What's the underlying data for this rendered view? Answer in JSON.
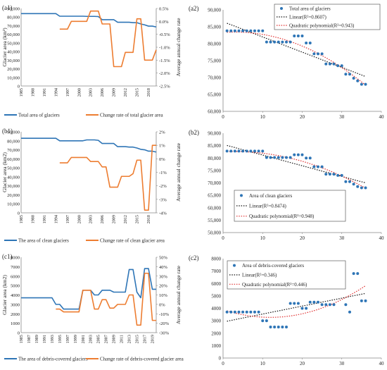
{
  "chart_data": [
    {
      "panel": "(a1)",
      "type": "line",
      "ylabel": "Glacier area (km²)",
      "y2label": "Average annual change rate",
      "yticks": [
        "0",
        "10,000",
        "20,000",
        "30,000",
        "40,000",
        "50,000",
        "60,000",
        "70,000",
        "80,000",
        "90,000"
      ],
      "ylim": [
        0,
        90000
      ],
      "y2ticks": [
        "-2.5%",
        "-2.0%",
        "-1.5%",
        "-1.0%",
        "-0.5%",
        "0.0%",
        "0.5%"
      ],
      "y2lim": [
        -2.5,
        0.5
      ],
      "xticks": [
        "1985",
        "1988",
        "1991",
        "1994",
        "1997",
        "2000",
        "2003",
        "2006",
        "2009",
        "2012",
        "2015",
        "2018"
      ],
      "xrange": [
        1985,
        2020
      ],
      "series": [
        {
          "name": "Total area of glaciers",
          "axis": "left",
          "color": "#2e75b6",
          "x": [
            1985,
            1986,
            1987,
            1988,
            1989,
            1990,
            1991,
            1992,
            1993,
            1994,
            1995,
            1996,
            1997,
            1998,
            1999,
            2000,
            2001,
            2002,
            2003,
            2004,
            2005,
            2006,
            2007,
            2008,
            2009,
            2010,
            2011,
            2012,
            2013,
            2014,
            2015,
            2016,
            2017,
            2018,
            2019,
            2020
          ],
          "values": [
            84000,
            84000,
            84000,
            84000,
            84000,
            84000,
            84000,
            84000,
            84000,
            84000,
            81000,
            81000,
            81000,
            81000,
            81000,
            81000,
            81000,
            80800,
            80800,
            80800,
            80600,
            77000,
            77000,
            77000,
            77000,
            74000,
            74000,
            74000,
            74000,
            73500,
            73500,
            72000,
            71000,
            69500,
            69500,
            68500
          ]
        },
        {
          "name": "Change rate of total glacier area",
          "axis": "right",
          "color": "#ed7d31",
          "x": [
            1995,
            1996,
            1997,
            1998,
            1999,
            2000,
            2001,
            2002,
            2003,
            2004,
            2005,
            2006,
            2007,
            2008,
            2009,
            2010,
            2011,
            2012,
            2013,
            2014,
            2015,
            2016,
            2017,
            2018,
            2019,
            2020
          ],
          "values": [
            -0.3,
            -0.3,
            -0.3,
            0.0,
            0.0,
            0.0,
            0.0,
            0.0,
            0.4,
            0.4,
            0.4,
            -0.1,
            -0.1,
            -0.1,
            -1.75,
            -1.75,
            -1.75,
            -1.2,
            -1.2,
            -1.2,
            0.1,
            0.1,
            -1.5,
            -1.5,
            -1.5,
            -1.1
          ]
        }
      ]
    },
    {
      "panel": "(a2)",
      "type": "scatter",
      "ylim": [
        60000,
        90000
      ],
      "yticks": [
        "60,000",
        "65,000",
        "70,000",
        "75,000",
        "80,000",
        "85,000",
        "90,000"
      ],
      "xlim": [
        0,
        40
      ],
      "xticks": [
        "0",
        "10",
        "20",
        "30",
        "40"
      ],
      "legend": [
        {
          "label": "Total area of glaciers",
          "style": "dot",
          "color": "#2e75b6"
        },
        {
          "label": "Linear(R²=0.8607)",
          "style": "dotted",
          "color": "#111111"
        },
        {
          "label": "Quadratic polynomial(R²=0.943)",
          "style": "dotted",
          "color": "#e03030"
        }
      ],
      "points": {
        "x": [
          1,
          2,
          3,
          4,
          5,
          6,
          7,
          8,
          9,
          10,
          11,
          12,
          13,
          14,
          15,
          16,
          17,
          18,
          19,
          20,
          21,
          22,
          23,
          24,
          25,
          26,
          27,
          28,
          29,
          30,
          31,
          32,
          33,
          34,
          35,
          36
        ],
        "y": [
          83800,
          83800,
          83800,
          83800,
          83800,
          83800,
          83800,
          83800,
          83800,
          83800,
          80500,
          80500,
          80500,
          80500,
          80500,
          80500,
          80500,
          82300,
          82300,
          82300,
          80200,
          80200,
          77000,
          77000,
          77000,
          74000,
          74000,
          74000,
          73500,
          73500,
          71000,
          71000,
          69800,
          69000,
          68000,
          68000
        ]
      },
      "linear": {
        "coef": [
          86500,
          -450
        ]
      },
      "quadratic": {
        "coef": [
          83300,
          90,
          -14.5
        ]
      }
    },
    {
      "panel": "(b1)",
      "type": "line",
      "ylabel": "Glacier area (km2)",
      "y2label": "Average annual change rate",
      "yticks": [
        "0",
        "10,000",
        "20,000",
        "30,000",
        "40,000",
        "50,000",
        "60,000",
        "70,000",
        "80,000",
        "90,000"
      ],
      "ylim": [
        0,
        90000
      ],
      "y2ticks": [
        "-4%",
        "-3%",
        "-2%",
        "-1%",
        "0%",
        "1%",
        "2%"
      ],
      "y2lim": [
        -4,
        2
      ],
      "xticks": [
        "1985",
        "1988",
        "1991",
        "1994",
        "1997",
        "2000",
        "2003",
        "2006",
        "2009",
        "2012",
        "2015",
        "2018"
      ],
      "xrange": [
        1985,
        2020
      ],
      "series": [
        {
          "name": "The area of clean glaciers",
          "axis": "left",
          "color": "#2e75b6",
          "x": [
            1985,
            1986,
            1987,
            1988,
            1989,
            1990,
            1991,
            1992,
            1993,
            1994,
            1995,
            1996,
            1997,
            1998,
            1999,
            2000,
            2001,
            2002,
            2003,
            2004,
            2005,
            2006,
            2007,
            2008,
            2009,
            2010,
            2011,
            2012,
            2013,
            2014,
            2015,
            2016,
            2017,
            2018,
            2019,
            2020
          ],
          "values": [
            82800,
            82800,
            82800,
            82800,
            82800,
            82800,
            82800,
            82800,
            82800,
            82800,
            80000,
            80000,
            80000,
            80000,
            80000,
            80000,
            80000,
            81000,
            81000,
            81000,
            80500,
            77000,
            77000,
            77000,
            77000,
            73500,
            73500,
            73500,
            73000,
            73000,
            72000,
            70500,
            70000,
            68500,
            68500,
            67500
          ]
        },
        {
          "name": "Change rate of clean glacier area",
          "axis": "right",
          "color": "#ed7d31",
          "x": [
            1995,
            1996,
            1997,
            1998,
            1999,
            2000,
            2001,
            2002,
            2003,
            2004,
            2005,
            2006,
            2007,
            2008,
            2009,
            2010,
            2011,
            2012,
            2013,
            2014,
            2015,
            2016,
            2017,
            2018,
            2019,
            2020
          ],
          "values": [
            -0.3,
            -0.3,
            -0.3,
            0.1,
            0.1,
            0.1,
            0.1,
            0.1,
            -0.2,
            -0.2,
            -0.2,
            -0.6,
            -0.6,
            -2.1,
            -2.1,
            -2.1,
            -1.3,
            -1.3,
            -1.3,
            -1.1,
            -0.1,
            -0.1,
            -3.8,
            -3.8,
            1.0,
            1.0
          ]
        }
      ]
    },
    {
      "panel": "(b2)",
      "type": "scatter",
      "ylim": [
        50000,
        90000
      ],
      "yticks": [
        "50,000",
        "55,000",
        "60,000",
        "65,000",
        "70,000",
        "75,000",
        "80,000",
        "85,000",
        "90,000"
      ],
      "xlim": [
        0,
        40
      ],
      "xticks": [
        "0",
        "10",
        "20",
        "30",
        "40"
      ],
      "legend": [
        {
          "label": "Area of clean glaciers",
          "style": "dot",
          "color": "#2e75b6"
        },
        {
          "label": "Linear(R²=0.8474)",
          "style": "dotted",
          "color": "#111111"
        },
        {
          "label": "Quadratic polynomial(R²=0.948)",
          "style": "dotted",
          "color": "#e03030"
        }
      ],
      "points": {
        "x": [
          1,
          2,
          3,
          4,
          5,
          6,
          7,
          8,
          9,
          10,
          11,
          12,
          13,
          14,
          15,
          16,
          17,
          18,
          19,
          20,
          21,
          22,
          23,
          24,
          25,
          26,
          27,
          28,
          29,
          30,
          31,
          32,
          33,
          34,
          35,
          36
        ],
        "y": [
          82800,
          82800,
          82800,
          82800,
          82800,
          82800,
          82800,
          82800,
          82800,
          82800,
          80200,
          80200,
          80200,
          80200,
          80200,
          80200,
          80200,
          81300,
          81300,
          81300,
          80000,
          80000,
          76500,
          76500,
          76500,
          73500,
          73500,
          73500,
          73000,
          73000,
          70500,
          70500,
          69500,
          68500,
          68000,
          68000
        ]
      },
      "linear": {
        "coef": [
          85500,
          -430
        ]
      },
      "quadratic": {
        "coef": [
          82500,
          80,
          -13.5
        ]
      }
    },
    {
      "panel": "(c1)",
      "type": "line",
      "ylabel": "Glacier area (km2)",
      "y2label": "Average annual change rate",
      "yticks": [
        "0",
        "1000",
        "2000",
        "3000",
        "4000",
        "5000",
        "6000",
        "7000",
        "8000"
      ],
      "ylim": [
        0,
        8000
      ],
      "y2ticks": [
        "-30%",
        "-20%",
        "-10%",
        "0%",
        "10%",
        "20%",
        "30%",
        "40%",
        "50%"
      ],
      "y2lim": [
        -30,
        50
      ],
      "xticks": [
        "1985",
        "1987",
        "1989",
        "1991",
        "1993",
        "1995",
        "1997",
        "1999",
        "2001",
        "2003",
        "2005",
        "2007",
        "2009",
        "2011",
        "2013",
        "2015",
        "2017",
        "2019"
      ],
      "xrange": [
        1985,
        2020
      ],
      "series": [
        {
          "name": "The area of debris-covered glaciers",
          "axis": "left",
          "color": "#2e75b6",
          "x": [
            1985,
            1986,
            1987,
            1988,
            1989,
            1990,
            1991,
            1992,
            1993,
            1994,
            1995,
            1996,
            1997,
            1998,
            1999,
            2000,
            2001,
            2002,
            2003,
            2004,
            2005,
            2006,
            2007,
            2008,
            2009,
            2010,
            2011,
            2012,
            2013,
            2014,
            2015,
            2016,
            2017,
            2018,
            2019,
            2020
          ],
          "values": [
            3700,
            3700,
            3700,
            3700,
            3700,
            3700,
            3700,
            3700,
            3700,
            3000,
            3000,
            2500,
            2500,
            2500,
            2500,
            2500,
            4500,
            4500,
            4500,
            4000,
            4000,
            4500,
            4500,
            4500,
            4300,
            4300,
            4300,
            4300,
            6700,
            6700,
            4300,
            3700,
            6800,
            6800,
            4600,
            4600
          ]
        },
        {
          "name": "Change rate of debris-covered glacier area",
          "axis": "right",
          "color": "#ed7d31",
          "x": [
            1994,
            1995,
            1996,
            1997,
            1998,
            1999,
            2000,
            2001,
            2002,
            2003,
            2004,
            2005,
            2006,
            2007,
            2008,
            2009,
            2010,
            2011,
            2012,
            2013,
            2014,
            2015,
            2016,
            2017,
            2018,
            2019,
            2020
          ],
          "values": [
            -5,
            -5,
            -8,
            -8,
            -8,
            -8,
            -8,
            15,
            15,
            15,
            -5,
            -5,
            5,
            5,
            -4,
            -4,
            0,
            0,
            0,
            10,
            10,
            -22,
            -22,
            33,
            33,
            -17,
            -17
          ]
        }
      ]
    },
    {
      "panel": "(c2)",
      "type": "scatter",
      "ylim": [
        0,
        8000
      ],
      "yticks": [
        "0",
        "1000",
        "2000",
        "3000",
        "4000",
        "5000",
        "6000",
        "7000",
        "8000"
      ],
      "xlim": [
        0,
        40
      ],
      "xticks": [
        "0",
        "10",
        "20",
        "30",
        "40"
      ],
      "legend": [
        {
          "label": "Area of debris-covered glaciers",
          "style": "dot",
          "color": "#2e75b6"
        },
        {
          "label": "Linear(R²=0.346)",
          "style": "dotted",
          "color": "#111111"
        },
        {
          "label": "Quadratic polynomial(R²=0.446)",
          "style": "dotted",
          "color": "#e03030"
        }
      ],
      "points": {
        "x": [
          1,
          2,
          3,
          4,
          5,
          6,
          7,
          8,
          9,
          10,
          11,
          12,
          13,
          14,
          15,
          16,
          17,
          18,
          19,
          20,
          21,
          22,
          23,
          24,
          25,
          26,
          27,
          28,
          29,
          30,
          31,
          32,
          33,
          34,
          35,
          36
        ],
        "y": [
          3700,
          3700,
          3700,
          3700,
          3700,
          3700,
          3700,
          3700,
          3700,
          3000,
          3000,
          2500,
          2500,
          2500,
          2500,
          2500,
          4400,
          4400,
          4400,
          4000,
          4000,
          4500,
          4500,
          4500,
          4300,
          4300,
          4300,
          4300,
          6700,
          6700,
          4300,
          3700,
          6800,
          6800,
          4600,
          4600
        ]
      },
      "linear": {
        "coef": [
          2900,
          64
        ]
      },
      "quadratic": {
        "coef": [
          3900,
          -105,
          4.4
        ]
      }
    }
  ],
  "line_legends": [
    {
      "panel": "(a1)",
      "items": [
        {
          "label": "Total area of glaciers",
          "color": "#2e75b6"
        },
        {
          "label": "Change rate of total glacier area",
          "color": "#ed7d31"
        }
      ]
    },
    {
      "panel": "(b1)",
      "items": [
        {
          "label": "The area of clean glaciers",
          "color": "#2e75b6"
        },
        {
          "label": "Change rate of clean glacier area",
          "color": "#ed7d31"
        }
      ]
    },
    {
      "panel": "(c1)",
      "items": [
        {
          "label": "The area of debris-covered glaciers",
          "color": "#2e75b6"
        },
        {
          "label": "Change rate of debris-covered glacier area",
          "color": "#ed7d31"
        }
      ]
    }
  ]
}
